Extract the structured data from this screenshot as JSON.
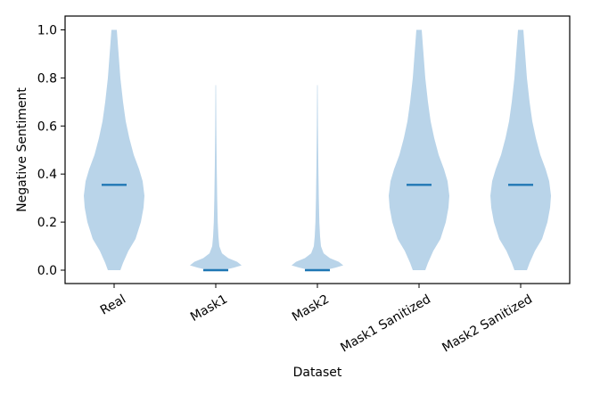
{
  "chart_data": {
    "type": "violin",
    "xlabel": "Dataset",
    "ylabel": "Negative Sentiment",
    "ylim": [
      0,
      1
    ],
    "categories": [
      "Real",
      "Mask1",
      "Mask2",
      "Mask1 Sanitized",
      "Mask2 Sanitized"
    ],
    "yticks": [
      "0.0",
      "0.2",
      "0.4",
      "0.6",
      "0.8",
      "1.0"
    ],
    "medians": [
      0.355,
      0.0,
      0.0,
      0.355,
      0.355
    ],
    "y_range": [
      [
        0.0,
        1.0
      ],
      [
        0.0,
        0.77
      ],
      [
        0.0,
        0.77
      ],
      [
        0.0,
        1.0
      ],
      [
        0.0,
        1.0
      ]
    ],
    "fill_color": "#b9d4e9",
    "median_color": "#1f77b4",
    "grid": false
  }
}
